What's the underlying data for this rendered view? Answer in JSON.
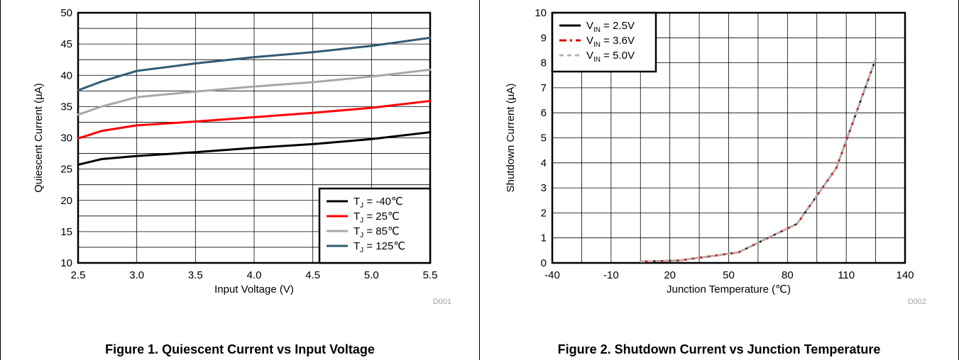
{
  "charts": [
    {
      "caption": "Figure 1. Quiescent Current vs Input Voltage",
      "code": "D001",
      "chart_data": {
        "type": "line",
        "xlabel": "Input Voltage (V)",
        "ylabel": "Quiescent Current (µA)",
        "xlim": [
          2.5,
          5.5
        ],
        "ylim": [
          10,
          50
        ],
        "xticks": [
          "2.5",
          "3.0",
          "3.5",
          "4.0",
          "4.5",
          "5.0",
          "5.5"
        ],
        "yticks": [
          "10",
          "15",
          "20",
          "25",
          "30",
          "35",
          "40",
          "45",
          "50"
        ],
        "grid": true,
        "legend_position": "bottom-right",
        "series": [
          {
            "name_main": "T",
            "name_sub": "J",
            "name_rest": " = -40℃",
            "color": "#000000",
            "dash": "",
            "x": [
              2.5,
              2.7,
              3.0,
              3.5,
              4.0,
              4.5,
              5.0,
              5.5
            ],
            "y": [
              25.7,
              26.6,
              27.1,
              27.7,
              28.4,
              29.0,
              29.8,
              30.9
            ]
          },
          {
            "name_main": "T",
            "name_sub": "J",
            "name_rest": " =  25℃",
            "color": "#ff0000",
            "dash": "",
            "x": [
              2.5,
              2.7,
              3.0,
              3.5,
              4.0,
              4.5,
              5.0,
              5.5
            ],
            "y": [
              29.9,
              31.1,
              32.0,
              32.6,
              33.3,
              34.0,
              34.8,
              35.9
            ]
          },
          {
            "name_main": "T",
            "name_sub": "J",
            "name_rest": " =  85℃",
            "color": "#a8a8a8",
            "dash": "",
            "x": [
              2.5,
              2.7,
              3.0,
              3.5,
              4.0,
              4.5,
              5.0,
              5.5
            ],
            "y": [
              33.7,
              35.0,
              36.5,
              37.4,
              38.2,
              38.9,
              39.8,
              40.9
            ]
          },
          {
            "name_main": "T",
            "name_sub": "J",
            "name_rest": " =  125℃",
            "color": "#2f5b72",
            "dash": "",
            "x": [
              2.5,
              2.7,
              3.0,
              3.5,
              4.0,
              4.5,
              5.0,
              5.5
            ],
            "y": [
              37.6,
              39.0,
              40.7,
              41.9,
              42.9,
              43.7,
              44.7,
              46.0
            ]
          }
        ]
      }
    },
    {
      "caption": "Figure 2. Shutdown Current vs Junction Temperature",
      "code": "D002",
      "chart_data": {
        "type": "line",
        "xlabel": "Junction Temperature (℃)",
        "ylabel": "Shutdown Current (µA)",
        "xlim": [
          -40,
          140
        ],
        "ylim": [
          0,
          10
        ],
        "xticks": [
          "-40",
          "-10",
          "20",
          "50",
          "80",
          "110",
          "140"
        ],
        "yticks": [
          "0",
          "1",
          "2",
          "3",
          "4",
          "5",
          "6",
          "7",
          "8",
          "9",
          "10"
        ],
        "grid": true,
        "legend_position": "top-left",
        "series": [
          {
            "name_main": "V",
            "name_sub": "IN",
            "name_rest": " = 2.5V",
            "color": "#000000",
            "dash": "",
            "x": [
              5,
              25,
              55,
              85,
              105,
              125
            ],
            "y": [
              0.05,
              0.1,
              0.42,
              1.57,
              3.8,
              8.15
            ]
          },
          {
            "name_main": "V",
            "name_sub": "IN",
            "name_rest": " = 3.6V",
            "color": "#e00000",
            "dash": "10,5,3,5",
            "x": [
              5,
              25,
              55,
              85,
              105,
              125
            ],
            "y": [
              0.05,
              0.1,
              0.42,
              1.57,
              3.8,
              8.15
            ]
          },
          {
            "name_main": "V",
            "name_sub": "IN",
            "name_rest": " = 5.0V",
            "color": "#b4b4b4",
            "dash": "6,5",
            "x": [
              5,
              25,
              55,
              85,
              105,
              125
            ],
            "y": [
              0.05,
              0.1,
              0.42,
              1.57,
              3.8,
              8.15
            ]
          }
        ]
      }
    }
  ]
}
